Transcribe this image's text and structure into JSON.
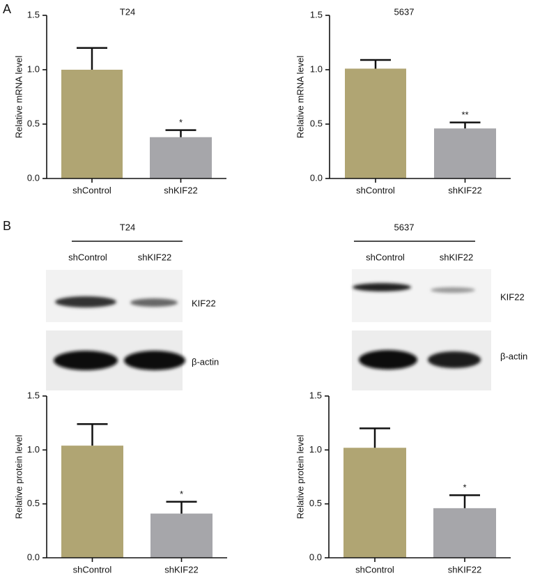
{
  "panels": [
    "A",
    "B"
  ],
  "blots": [
    {
      "title": "T24",
      "lanes": [
        "shControl",
        "shKIF22"
      ],
      "bands": [
        "KIF22",
        "β-actin"
      ]
    },
    {
      "title": "5637",
      "lanes": [
        "shControl",
        "shKIF22"
      ],
      "bands": [
        "KIF22",
        "β-actin"
      ]
    }
  ],
  "chart_data": [
    {
      "type": "bar",
      "title": "T24",
      "y_label": "Relative mRNA level",
      "categories": [
        "shControl",
        "shKIF22"
      ],
      "values": [
        1.0,
        0.38
      ],
      "errors": [
        0.2,
        0.065
      ],
      "significance": [
        null,
        "*"
      ],
      "colors": [
        "#b0a573",
        "#a6a6aa"
      ],
      "ylim": [
        0,
        1.5
      ],
      "yticks": [
        {
          "value": 0,
          "label": "0.0"
        },
        {
          "value": 0.5,
          "label": "0.5"
        },
        {
          "value": 1,
          "label": "1.0"
        },
        {
          "value": 1.5,
          "label": "1.5"
        }
      ]
    },
    {
      "type": "bar",
      "title": "5637",
      "y_label": "Relative mRNA level",
      "categories": [
        "shControl",
        "shKIF22"
      ],
      "values": [
        1.01,
        0.46
      ],
      "errors": [
        0.08,
        0.055
      ],
      "significance": [
        null,
        "**"
      ],
      "colors": [
        "#b0a573",
        "#a6a6aa"
      ],
      "ylim": [
        0,
        1.5
      ],
      "yticks": [
        {
          "value": 0,
          "label": "0.0"
        },
        {
          "value": 0.5,
          "label": "0.5"
        },
        {
          "value": 1,
          "label": "1.0"
        },
        {
          "value": 1.5,
          "label": "1.5"
        }
      ]
    },
    {
      "type": "bar",
      "y_label": "Relative protein level",
      "categories": [
        "shControl",
        "shKIF22"
      ],
      "values": [
        1.04,
        0.41
      ],
      "errors": [
        0.2,
        0.11
      ],
      "significance": [
        null,
        "*"
      ],
      "colors": [
        "#b0a573",
        "#a6a6aa"
      ],
      "ylim": [
        0,
        1.5
      ],
      "yticks": [
        {
          "value": 0,
          "label": "0.0"
        },
        {
          "value": 0.5,
          "label": "0.5"
        },
        {
          "value": 1,
          "label": "1.0"
        },
        {
          "value": 1.5,
          "label": "1.5"
        }
      ]
    },
    {
      "type": "bar",
      "y_label": "Relative protein level",
      "categories": [
        "shControl",
        "shKIF22"
      ],
      "values": [
        1.02,
        0.46
      ],
      "errors": [
        0.18,
        0.12
      ],
      "significance": [
        null,
        "*"
      ],
      "colors": [
        "#b0a573",
        "#a6a6aa"
      ],
      "ylim": [
        0,
        1.5
      ],
      "yticks": [
        {
          "value": 0,
          "label": "0.0"
        },
        {
          "value": 0.5,
          "label": "0.5"
        },
        {
          "value": 1,
          "label": "1.0"
        },
        {
          "value": 1.5,
          "label": "1.5"
        }
      ]
    }
  ]
}
